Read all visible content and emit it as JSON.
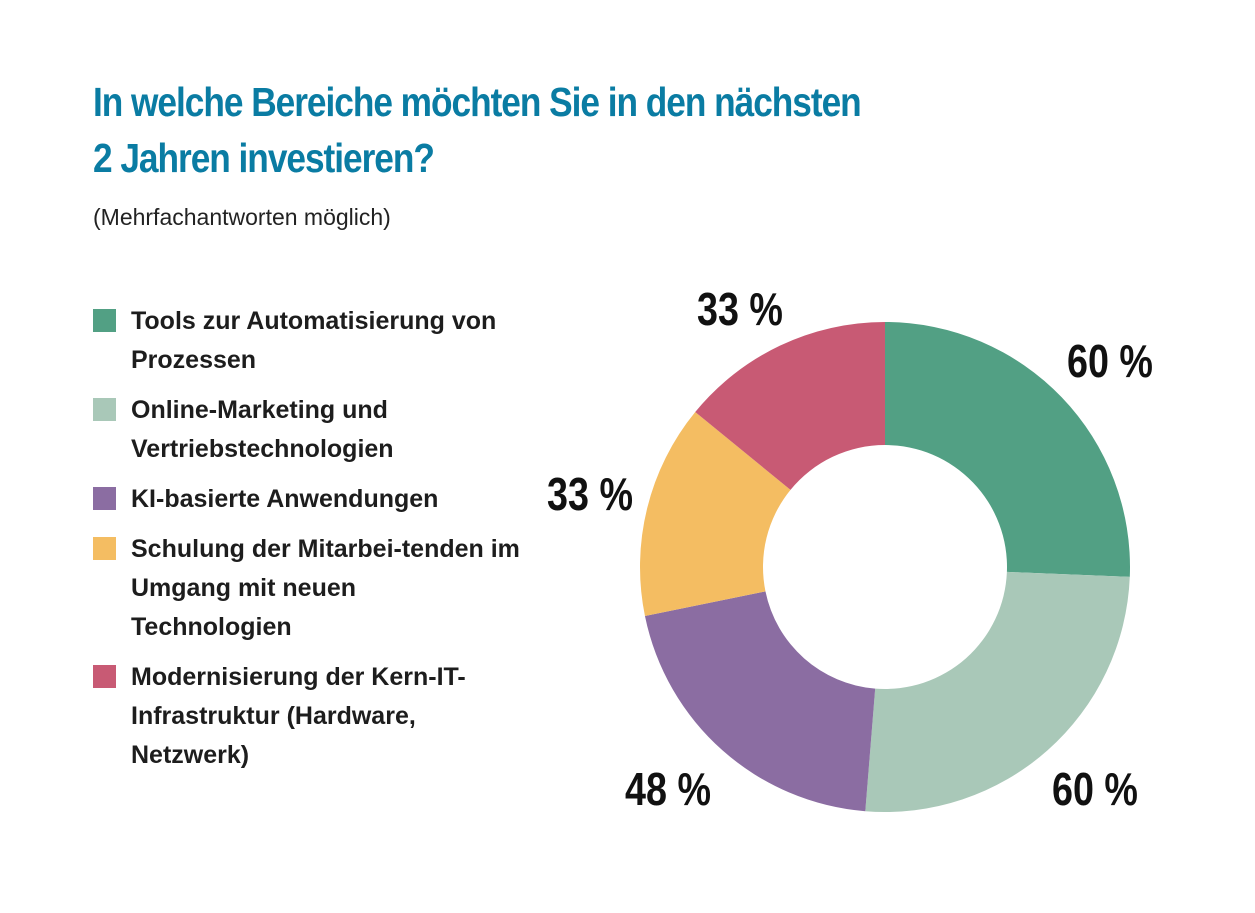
{
  "title_line1": "In welche Bereiche möchten Sie in den nächsten",
  "title_line2": "2 Jahren investieren?",
  "subtitle": "(Mehrfachantworten möglich)",
  "chart_data": {
    "type": "pie",
    "title": "In welche Bereiche möchten Sie in den nächsten 2 Jahren investieren?",
    "subtitle": "(Mehrfachantworten möglich)",
    "legend_position": "left",
    "donut": true,
    "slices": [
      {
        "label": "Tools zur Automatisierung von Prozessen",
        "value": 60,
        "value_label": "60 %",
        "color": "#52a084"
      },
      {
        "label": "Online-Marketing und Vertriebstechnologien",
        "value": 60,
        "value_label": "60 %",
        "color": "#a9c8b8"
      },
      {
        "label": "KI-basierte Anwendungen",
        "value": 48,
        "value_label": "48 %",
        "color": "#8b6da2"
      },
      {
        "label": "Schulung der Mitarbei-tenden im Umgang mit neuen Technologien",
        "value": 33,
        "value_label": "33 %",
        "color": "#f4bd62"
      },
      {
        "label": "Modernisierung der Kern-IT-Infrastruktur (Hardware, Netzwerk)",
        "value": 33,
        "value_label": "33 %",
        "color": "#c85a74"
      }
    ]
  }
}
